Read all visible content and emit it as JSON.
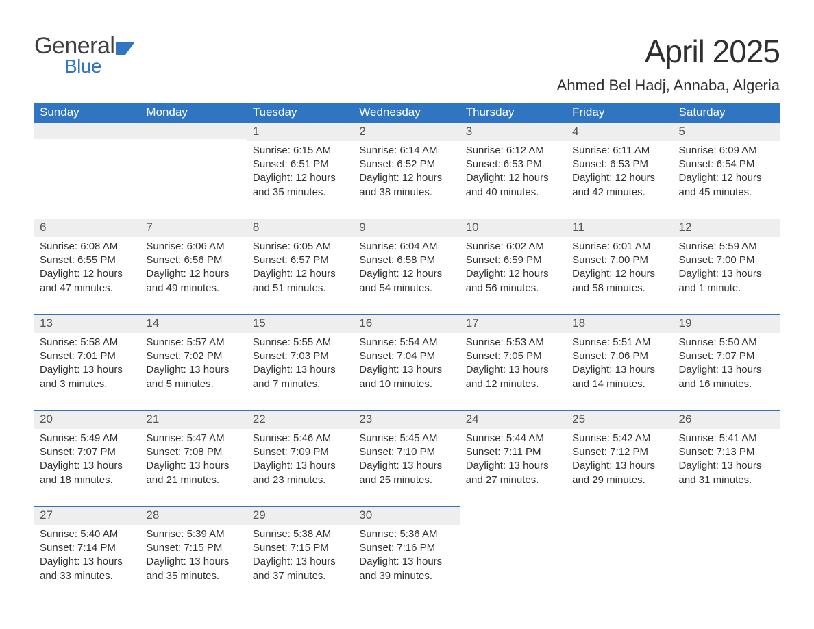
{
  "branding": {
    "word1": "General",
    "word2": "Blue",
    "word1_color": "#404040",
    "word2_color": "#2f75c2",
    "icon_color": "#2f75c2"
  },
  "title": "April 2025",
  "location": "Ahmed Bel Hadj, Annaba, Algeria",
  "colors": {
    "header_bg": "#2f75c2",
    "header_text": "#ffffff",
    "daynum_bg": "#eeeeee",
    "daynum_border": "#2f75c2",
    "body_bg": "#ffffff",
    "text": "#303030"
  },
  "typography": {
    "title_fontsize": 46,
    "location_fontsize": 22,
    "dow_fontsize": 17,
    "daynum_fontsize": 17,
    "body_fontsize": 15,
    "font_family": "Segoe UI, Arial, Helvetica, sans-serif"
  },
  "days_of_week": [
    "Sunday",
    "Monday",
    "Tuesday",
    "Wednesday",
    "Thursday",
    "Friday",
    "Saturday"
  ],
  "weeks": [
    [
      {
        "day": "",
        "sunrise": "",
        "sunset": "",
        "daylight1": "",
        "daylight2": ""
      },
      {
        "day": "",
        "sunrise": "",
        "sunset": "",
        "daylight1": "",
        "daylight2": ""
      },
      {
        "day": "1",
        "sunrise": "Sunrise: 6:15 AM",
        "sunset": "Sunset: 6:51 PM",
        "daylight1": "Daylight: 12 hours",
        "daylight2": "and 35 minutes."
      },
      {
        "day": "2",
        "sunrise": "Sunrise: 6:14 AM",
        "sunset": "Sunset: 6:52 PM",
        "daylight1": "Daylight: 12 hours",
        "daylight2": "and 38 minutes."
      },
      {
        "day": "3",
        "sunrise": "Sunrise: 6:12 AM",
        "sunset": "Sunset: 6:53 PM",
        "daylight1": "Daylight: 12 hours",
        "daylight2": "and 40 minutes."
      },
      {
        "day": "4",
        "sunrise": "Sunrise: 6:11 AM",
        "sunset": "Sunset: 6:53 PM",
        "daylight1": "Daylight: 12 hours",
        "daylight2": "and 42 minutes."
      },
      {
        "day": "5",
        "sunrise": "Sunrise: 6:09 AM",
        "sunset": "Sunset: 6:54 PM",
        "daylight1": "Daylight: 12 hours",
        "daylight2": "and 45 minutes."
      }
    ],
    [
      {
        "day": "6",
        "sunrise": "Sunrise: 6:08 AM",
        "sunset": "Sunset: 6:55 PM",
        "daylight1": "Daylight: 12 hours",
        "daylight2": "and 47 minutes."
      },
      {
        "day": "7",
        "sunrise": "Sunrise: 6:06 AM",
        "sunset": "Sunset: 6:56 PM",
        "daylight1": "Daylight: 12 hours",
        "daylight2": "and 49 minutes."
      },
      {
        "day": "8",
        "sunrise": "Sunrise: 6:05 AM",
        "sunset": "Sunset: 6:57 PM",
        "daylight1": "Daylight: 12 hours",
        "daylight2": "and 51 minutes."
      },
      {
        "day": "9",
        "sunrise": "Sunrise: 6:04 AM",
        "sunset": "Sunset: 6:58 PM",
        "daylight1": "Daylight: 12 hours",
        "daylight2": "and 54 minutes."
      },
      {
        "day": "10",
        "sunrise": "Sunrise: 6:02 AM",
        "sunset": "Sunset: 6:59 PM",
        "daylight1": "Daylight: 12 hours",
        "daylight2": "and 56 minutes."
      },
      {
        "day": "11",
        "sunrise": "Sunrise: 6:01 AM",
        "sunset": "Sunset: 7:00 PM",
        "daylight1": "Daylight: 12 hours",
        "daylight2": "and 58 minutes."
      },
      {
        "day": "12",
        "sunrise": "Sunrise: 5:59 AM",
        "sunset": "Sunset: 7:00 PM",
        "daylight1": "Daylight: 13 hours",
        "daylight2": "and 1 minute."
      }
    ],
    [
      {
        "day": "13",
        "sunrise": "Sunrise: 5:58 AM",
        "sunset": "Sunset: 7:01 PM",
        "daylight1": "Daylight: 13 hours",
        "daylight2": "and 3 minutes."
      },
      {
        "day": "14",
        "sunrise": "Sunrise: 5:57 AM",
        "sunset": "Sunset: 7:02 PM",
        "daylight1": "Daylight: 13 hours",
        "daylight2": "and 5 minutes."
      },
      {
        "day": "15",
        "sunrise": "Sunrise: 5:55 AM",
        "sunset": "Sunset: 7:03 PM",
        "daylight1": "Daylight: 13 hours",
        "daylight2": "and 7 minutes."
      },
      {
        "day": "16",
        "sunrise": "Sunrise: 5:54 AM",
        "sunset": "Sunset: 7:04 PM",
        "daylight1": "Daylight: 13 hours",
        "daylight2": "and 10 minutes."
      },
      {
        "day": "17",
        "sunrise": "Sunrise: 5:53 AM",
        "sunset": "Sunset: 7:05 PM",
        "daylight1": "Daylight: 13 hours",
        "daylight2": "and 12 minutes."
      },
      {
        "day": "18",
        "sunrise": "Sunrise: 5:51 AM",
        "sunset": "Sunset: 7:06 PM",
        "daylight1": "Daylight: 13 hours",
        "daylight2": "and 14 minutes."
      },
      {
        "day": "19",
        "sunrise": "Sunrise: 5:50 AM",
        "sunset": "Sunset: 7:07 PM",
        "daylight1": "Daylight: 13 hours",
        "daylight2": "and 16 minutes."
      }
    ],
    [
      {
        "day": "20",
        "sunrise": "Sunrise: 5:49 AM",
        "sunset": "Sunset: 7:07 PM",
        "daylight1": "Daylight: 13 hours",
        "daylight2": "and 18 minutes."
      },
      {
        "day": "21",
        "sunrise": "Sunrise: 5:47 AM",
        "sunset": "Sunset: 7:08 PM",
        "daylight1": "Daylight: 13 hours",
        "daylight2": "and 21 minutes."
      },
      {
        "day": "22",
        "sunrise": "Sunrise: 5:46 AM",
        "sunset": "Sunset: 7:09 PM",
        "daylight1": "Daylight: 13 hours",
        "daylight2": "and 23 minutes."
      },
      {
        "day": "23",
        "sunrise": "Sunrise: 5:45 AM",
        "sunset": "Sunset: 7:10 PM",
        "daylight1": "Daylight: 13 hours",
        "daylight2": "and 25 minutes."
      },
      {
        "day": "24",
        "sunrise": "Sunrise: 5:44 AM",
        "sunset": "Sunset: 7:11 PM",
        "daylight1": "Daylight: 13 hours",
        "daylight2": "and 27 minutes."
      },
      {
        "day": "25",
        "sunrise": "Sunrise: 5:42 AM",
        "sunset": "Sunset: 7:12 PM",
        "daylight1": "Daylight: 13 hours",
        "daylight2": "and 29 minutes."
      },
      {
        "day": "26",
        "sunrise": "Sunrise: 5:41 AM",
        "sunset": "Sunset: 7:13 PM",
        "daylight1": "Daylight: 13 hours",
        "daylight2": "and 31 minutes."
      }
    ],
    [
      {
        "day": "27",
        "sunrise": "Sunrise: 5:40 AM",
        "sunset": "Sunset: 7:14 PM",
        "daylight1": "Daylight: 13 hours",
        "daylight2": "and 33 minutes."
      },
      {
        "day": "28",
        "sunrise": "Sunrise: 5:39 AM",
        "sunset": "Sunset: 7:15 PM",
        "daylight1": "Daylight: 13 hours",
        "daylight2": "and 35 minutes."
      },
      {
        "day": "29",
        "sunrise": "Sunrise: 5:38 AM",
        "sunset": "Sunset: 7:15 PM",
        "daylight1": "Daylight: 13 hours",
        "daylight2": "and 37 minutes."
      },
      {
        "day": "30",
        "sunrise": "Sunrise: 5:36 AM",
        "sunset": "Sunset: 7:16 PM",
        "daylight1": "Daylight: 13 hours",
        "daylight2": "and 39 minutes."
      },
      {
        "day": "",
        "sunrise": "",
        "sunset": "",
        "daylight1": "",
        "daylight2": ""
      },
      {
        "day": "",
        "sunrise": "",
        "sunset": "",
        "daylight1": "",
        "daylight2": ""
      },
      {
        "day": "",
        "sunrise": "",
        "sunset": "",
        "daylight1": "",
        "daylight2": ""
      }
    ]
  ]
}
